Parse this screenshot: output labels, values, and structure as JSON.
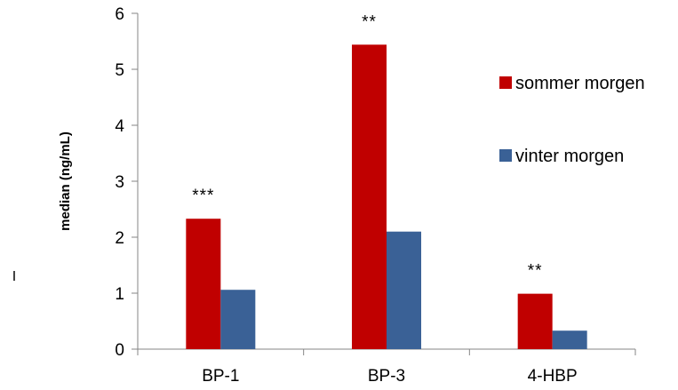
{
  "chart_data": {
    "type": "bar",
    "categories": [
      "BP-1",
      "BP-3",
      "4-HBP"
    ],
    "series": [
      {
        "name": "sommer morgen",
        "color": "#C00000",
        "values": [
          2.33,
          5.44,
          0.99
        ]
      },
      {
        "name": "vinter morgen",
        "color": "#3A6196",
        "values": [
          1.06,
          2.1,
          0.33
        ]
      }
    ],
    "ylabel": "median (ng/mL)",
    "xlabel": "",
    "ylim": [
      0,
      6
    ],
    "yticks": [
      0,
      1,
      2,
      3,
      4,
      5,
      6
    ],
    "grid": false,
    "legend_position": "right",
    "annotations": [
      "***",
      "**",
      "**"
    ],
    "stray_mark": "I"
  }
}
